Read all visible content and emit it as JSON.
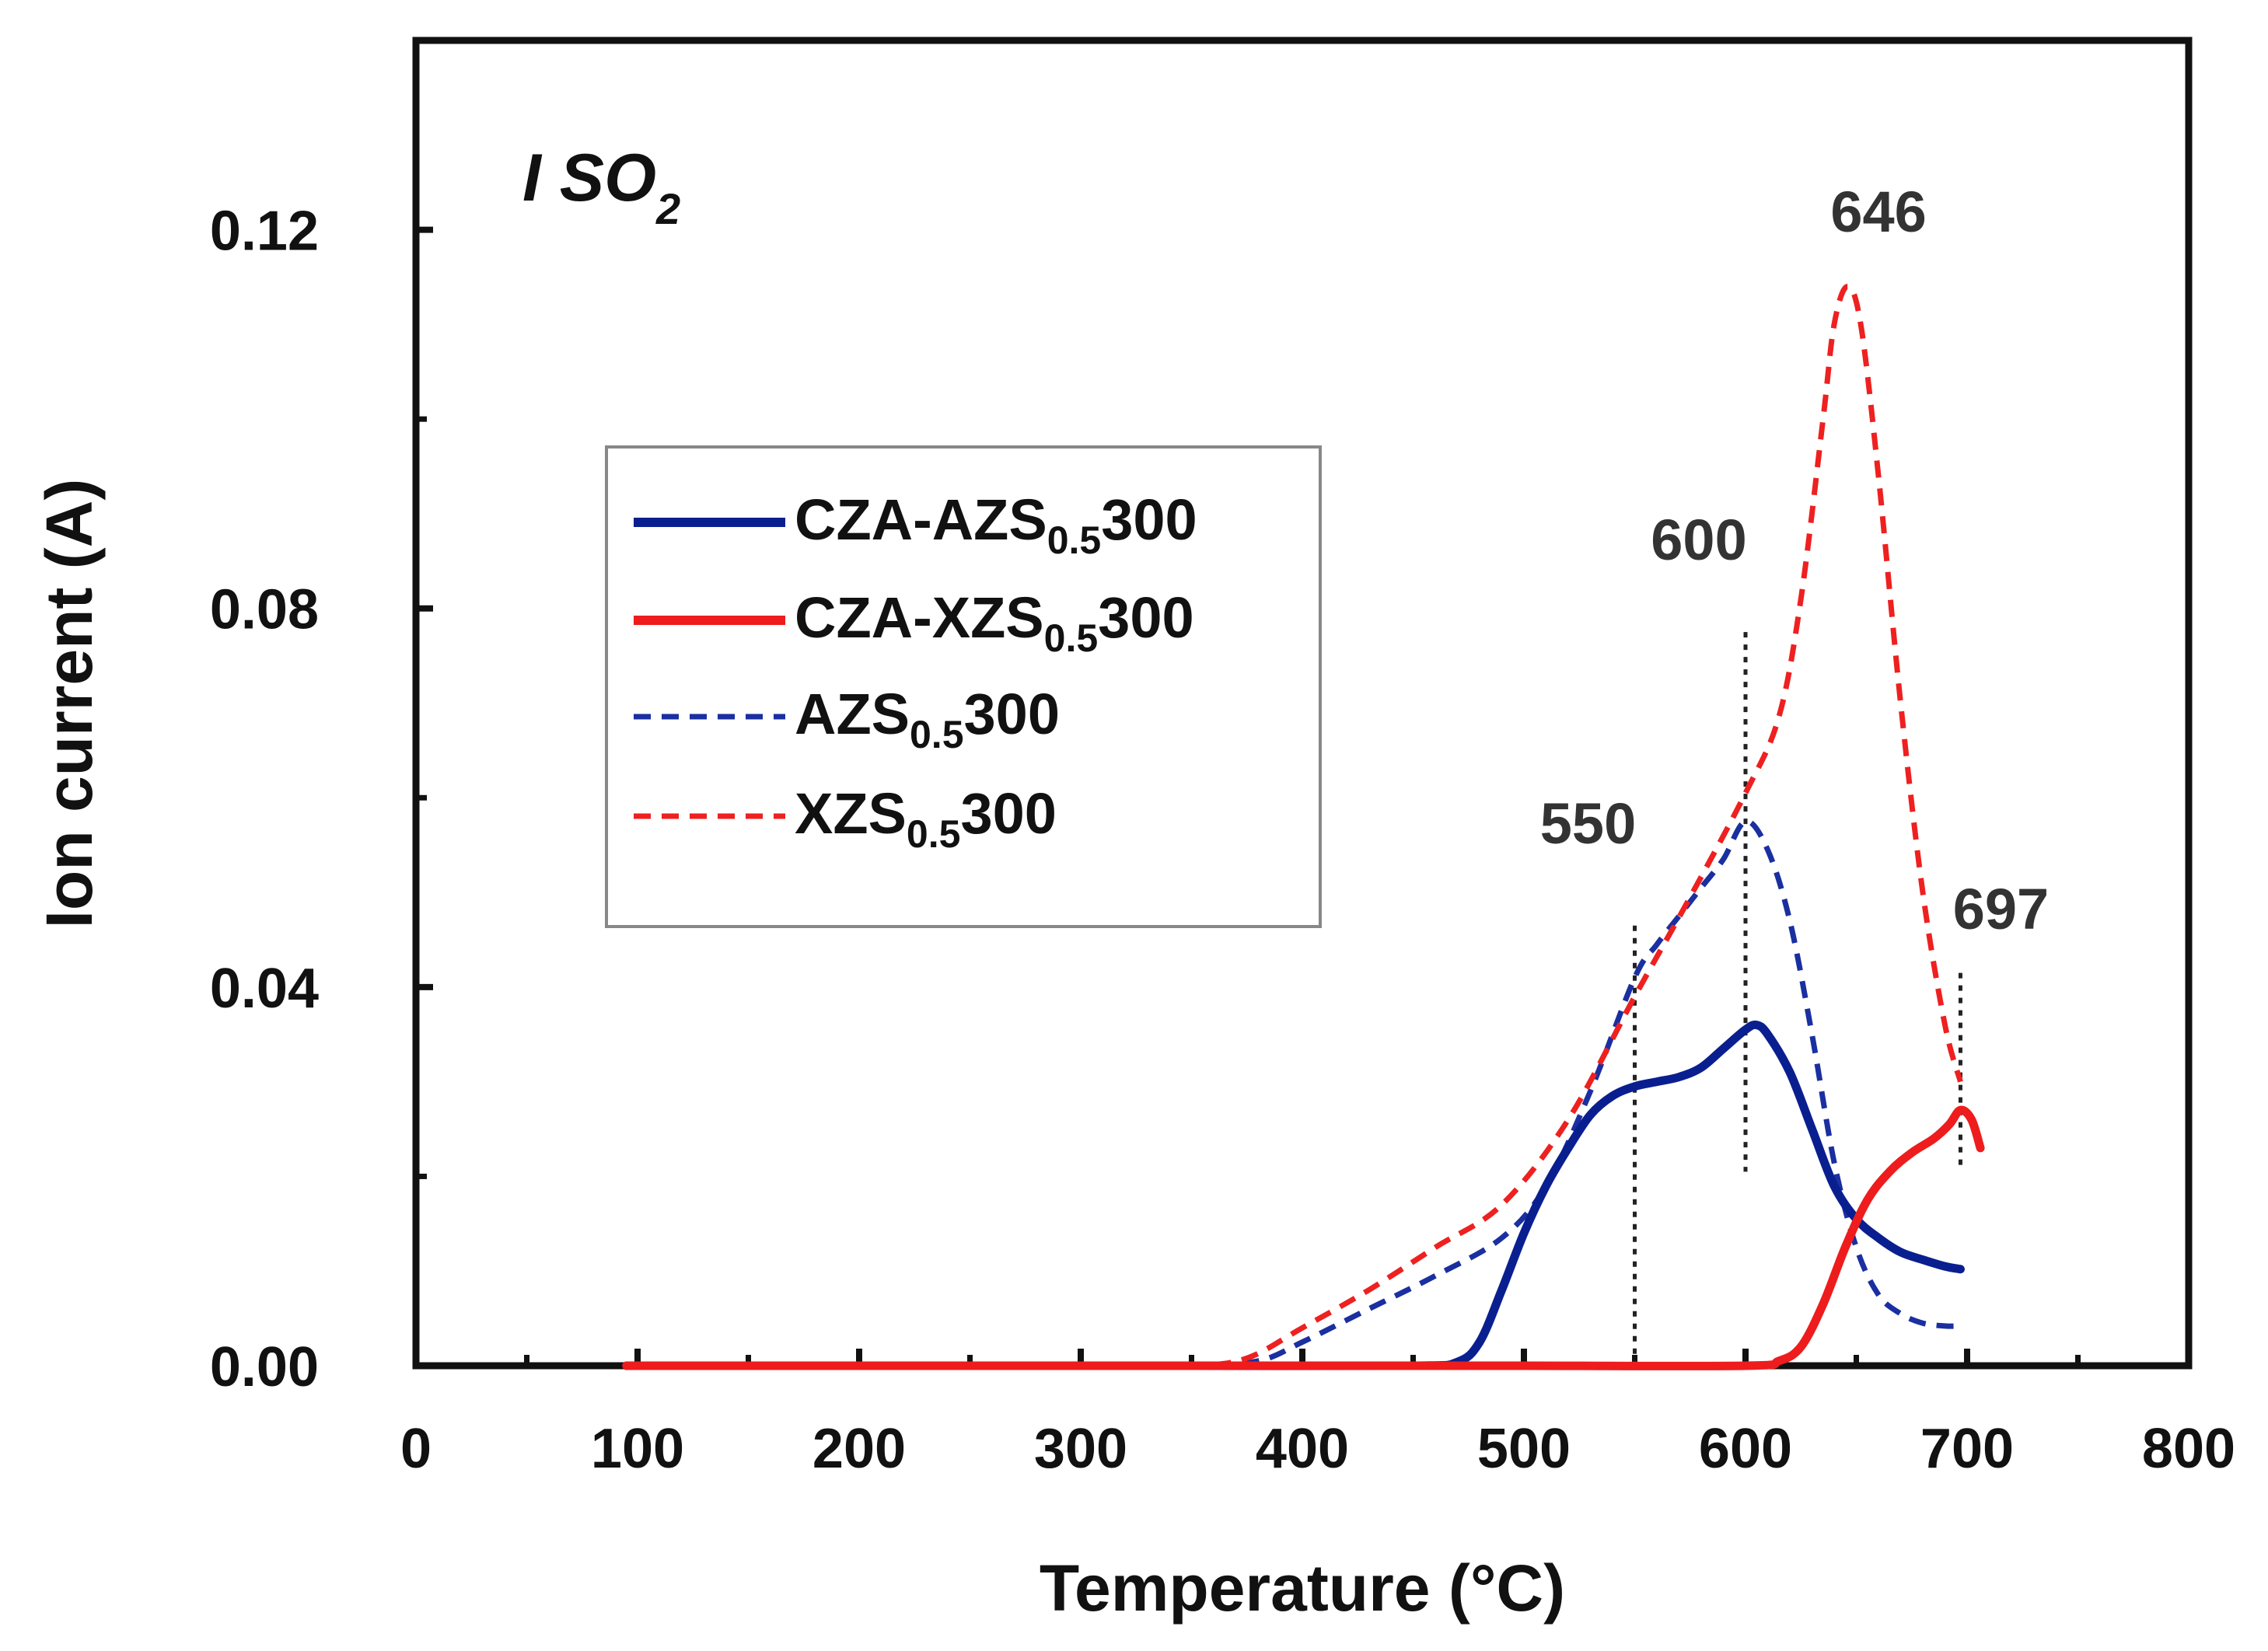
{
  "chart_data": {
    "type": "line",
    "title": "",
    "panel_label": {
      "main": "I SO",
      "sub": "2"
    },
    "xlabel": "Temperature (°C)",
    "ylabel": "Ion current (A)",
    "xlim": [
      0,
      800
    ],
    "ylim": [
      0,
      0.14
    ],
    "x_ticks": [
      "0",
      "100",
      "200",
      "300",
      "400",
      "500",
      "600",
      "700",
      "800"
    ],
    "y_ticks": [
      "0.00",
      "0.04",
      "0.08",
      "0.12"
    ],
    "legend_position": "upper-left",
    "series": [
      {
        "name": "CZA-AZS0.5300",
        "legend_main": "CZA-AZS",
        "legend_sub": "0.5",
        "legend_tail": "300",
        "color": "#0a1f8f",
        "style": "solid",
        "x": [
          95,
          150,
          250,
          350,
          450,
          470,
          480,
          490,
          500,
          510,
          520,
          530,
          540,
          550,
          560,
          570,
          580,
          590,
          600,
          605,
          610,
          620,
          630,
          640,
          650,
          660,
          670,
          680,
          690,
          697
        ],
        "y": [
          0.0,
          0.0,
          0.0,
          0.0,
          0.0,
          0.0004,
          0.0025,
          0.008,
          0.014,
          0.019,
          0.023,
          0.0265,
          0.0285,
          0.0295,
          0.03,
          0.0305,
          0.0315,
          0.0335,
          0.0355,
          0.036,
          0.035,
          0.031,
          0.025,
          0.019,
          0.0155,
          0.0135,
          0.012,
          0.0112,
          0.0105,
          0.0102
        ]
      },
      {
        "name": "CZA-XZS0.5300",
        "legend_main": "CZA-XZS",
        "legend_sub": "0.5",
        "legend_tail": "300",
        "color": "#ee1c1c",
        "style": "solid",
        "x": [
          95,
          200,
          300,
          400,
          500,
          600,
          615,
          625,
          635,
          645,
          655,
          665,
          675,
          685,
          692,
          697,
          702,
          706
        ],
        "y": [
          0.0,
          0.0,
          0.0,
          0.0,
          0.0,
          0.0,
          0.0005,
          0.002,
          0.0065,
          0.0125,
          0.0175,
          0.0205,
          0.0225,
          0.024,
          0.0255,
          0.027,
          0.026,
          0.023
        ]
      },
      {
        "name": "AZS0.5300",
        "legend_main": "AZS",
        "legend_sub": "0.5",
        "legend_tail": "300",
        "color": "#1a2fa0",
        "style": "dashed",
        "x": [
          95,
          200,
          300,
          350,
          380,
          400,
          430,
          460,
          490,
          510,
          530,
          550,
          560,
          570,
          580,
          590,
          600,
          610,
          620,
          630,
          640,
          650,
          660,
          670,
          680,
          690,
          697
        ],
        "y": [
          0.0,
          0.0,
          0.0,
          0.0,
          0.0005,
          0.0025,
          0.006,
          0.0095,
          0.0135,
          0.019,
          0.029,
          0.041,
          0.0445,
          0.0475,
          0.0505,
          0.0535,
          0.0575,
          0.0545,
          0.047,
          0.035,
          0.0215,
          0.0125,
          0.0075,
          0.0055,
          0.0045,
          0.0042,
          0.0042
        ]
      },
      {
        "name": "XZS0.5300",
        "legend_main": "XZS",
        "legend_sub": "0.5",
        "legend_tail": "300",
        "color": "#ee2020",
        "style": "dashed",
        "x": [
          95,
          200,
          300,
          350,
          375,
          400,
          430,
          460,
          490,
          520,
          550,
          575,
          600,
          615,
          625,
          635,
          640,
          646,
          652,
          660,
          670,
          680,
          690,
          697
        ],
        "y": [
          0.0,
          0.0,
          0.0,
          0.0,
          0.0008,
          0.004,
          0.008,
          0.0125,
          0.017,
          0.026,
          0.039,
          0.0495,
          0.0605,
          0.0685,
          0.081,
          0.1,
          0.11,
          0.114,
          0.11,
          0.094,
          0.07,
          0.05,
          0.036,
          0.03
        ]
      }
    ],
    "annotations": [
      {
        "label": "550",
        "x": 550,
        "line_top": 0.0465
      },
      {
        "label": "600",
        "x": 600,
        "line_top": 0.0775
      },
      {
        "label": "646",
        "x": 646,
        "line_top": null
      },
      {
        "label": "697",
        "x": 697,
        "line_top": 0.0415
      }
    ]
  }
}
